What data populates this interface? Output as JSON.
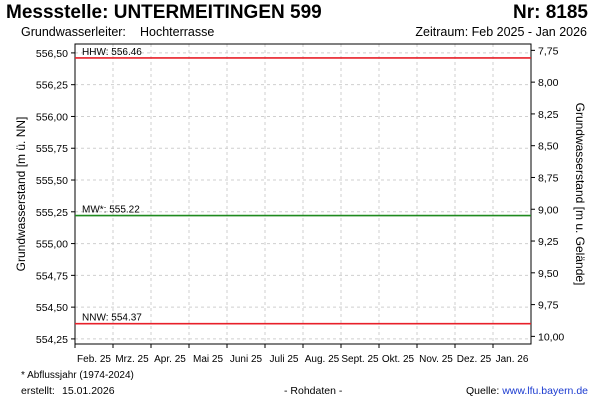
{
  "header": {
    "title": "Messstelle: UNTERMEITINGEN 599",
    "number": "Nr: 8185",
    "aquifer_label": "Grundwasserleiter:",
    "aquifer_value": "Hochterrasse",
    "period": "Zeitraum: Feb 2025 - Jan 2026"
  },
  "footer": {
    "footnote": "* Abflussjahr (1974-2024)",
    "created_label": "erstellt:",
    "created_value": "15.01.2026",
    "raw_note": "- Rohdaten -",
    "source_label": "Quelle:",
    "source_url": "www.lfu.bayern.de"
  },
  "chart_data": {
    "type": "line",
    "title": "",
    "ylabel": "Grundwasserstand [m ü. NN]",
    "y2label": "Grundwasserstand [m u. Gelände]",
    "ylim": [
      554.21,
      556.57
    ],
    "y_ticks": [
      554.25,
      554.5,
      554.75,
      555.0,
      555.25,
      555.5,
      555.75,
      556.0,
      556.25,
      556.5
    ],
    "y_tick_labels": [
      "554,25",
      "554,50",
      "554,75",
      "555,00",
      "555,25",
      "555,50",
      "555,75",
      "556,00",
      "556,25",
      "556,50"
    ],
    "y2_ticks": [
      7.75,
      8.0,
      8.25,
      8.5,
      8.75,
      9.0,
      9.25,
      9.5,
      9.75,
      10.0
    ],
    "y2_tick_labels": [
      "7,75",
      "8,00",
      "8,25",
      "8,50",
      "8,75",
      "9,00",
      "9,25",
      "9,50",
      "9,75",
      "10,00"
    ],
    "y2_surface_level": 564.27,
    "categories": [
      "Feb. 25",
      "Mrz. 25",
      "Apr. 25",
      "Mai 25",
      "Juni 25",
      "Juli 25",
      "Aug. 25",
      "Sept. 25",
      "Okt. 25",
      "Nov. 25",
      "Dez. 25",
      "Jan. 26"
    ],
    "grid": true,
    "reference_lines": [
      {
        "label": "HHW: 556.46",
        "value": 556.46,
        "color": "#e8202a"
      },
      {
        "label": "MW*: 555.22",
        "value": 555.22,
        "color": "#1f8a1f"
      },
      {
        "label": "NNW: 554.37",
        "value": 554.37,
        "color": "#e8202a"
      }
    ],
    "series": []
  }
}
